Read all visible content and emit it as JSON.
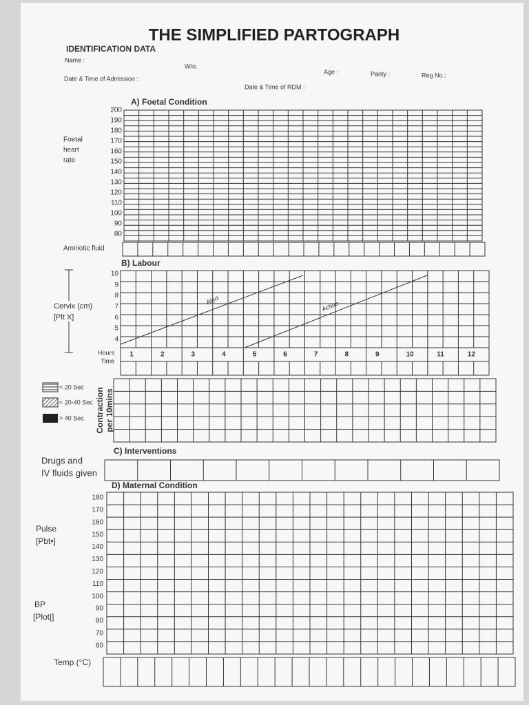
{
  "header": {
    "title": "THE SIMPLIFIED PARTOGRAPH"
  },
  "identification": {
    "heading": "IDENTIFICATION DATA",
    "name": "Name :",
    "wo": "W/o.",
    "age": "Age :",
    "parity": "Parity :",
    "reg_no": "Reg No.:",
    "admission": "Date & Time of Admission :",
    "rdm": "Date & Time of RDM :"
  },
  "foetal": {
    "title": "A) Foetal Condition",
    "label": [
      "Foetal",
      "heart",
      "rate"
    ],
    "scale": [
      200,
      190,
      180,
      170,
      160,
      150,
      140,
      130,
      120,
      110,
      100,
      90,
      80
    ],
    "amniotic": "Amniotic fluid"
  },
  "labour": {
    "title": "B) Labour",
    "label": [
      "Cervix (cm)",
      "[Plt X]"
    ],
    "scale": [
      10,
      9,
      8,
      7,
      6,
      5,
      4
    ],
    "alert": "Alert",
    "action": "Action",
    "hours_label": "Hours",
    "time_label": "Time",
    "hours": [
      1,
      2,
      3,
      4,
      5,
      6,
      7,
      8,
      9,
      10,
      11,
      12
    ]
  },
  "contraction": {
    "legend": [
      "< 20 Sec",
      "< 20-40 Sec",
      "> 40 Sec"
    ],
    "label": [
      "Contraction",
      "per 10mins"
    ]
  },
  "interventions": {
    "title": "C) Interventions",
    "label": [
      "Drugs and",
      "IV fluids given"
    ]
  },
  "maternal": {
    "title": "D) Maternal Condition",
    "scale": [
      180,
      170,
      160,
      150,
      140,
      130,
      120,
      110,
      100,
      90,
      80,
      70,
      60
    ],
    "pulse": [
      "Pulse",
      "[Pbt•]"
    ],
    "bp": [
      "BP",
      "[Plot|]"
    ],
    "temp": "Temp (°C)"
  }
}
